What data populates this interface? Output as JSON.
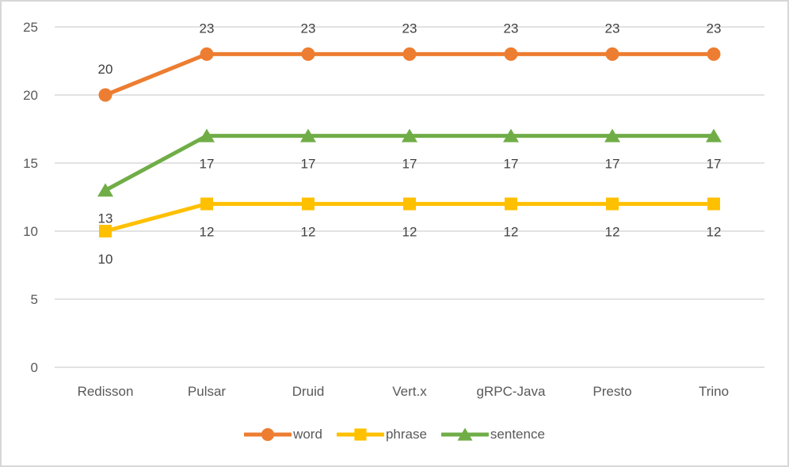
{
  "canvas": {
    "background": "#FFFFFF",
    "border_color": "#D7D7D7"
  },
  "chart_data": {
    "type": "line",
    "categories": [
      "Redisson",
      "Pulsar",
      "Druid",
      "Vert.x",
      "gRPC-Java",
      "Presto",
      "Trino"
    ],
    "series": [
      {
        "name": "word",
        "values": [
          20,
          23,
          23,
          23,
          23,
          23,
          23
        ],
        "color": "#ED7D31",
        "marker": "circle",
        "label_position": "above"
      },
      {
        "name": "phrase",
        "values": [
          10,
          12,
          12,
          12,
          12,
          12,
          12
        ],
        "color": "#FFC000",
        "marker": "square",
        "label_position": "below"
      },
      {
        "name": "sentence",
        "values": [
          13,
          17,
          17,
          17,
          17,
          17,
          17
        ],
        "color": "#70AD47",
        "marker": "triangle",
        "label_position": "below"
      }
    ],
    "xlabel": "",
    "ylabel": "",
    "ylim": [
      0,
      25
    ],
    "yticks": [
      0,
      5,
      10,
      15,
      20,
      25
    ],
    "grid": true,
    "gridline_color": "#D9D9D9",
    "axis_label_color": "#595959",
    "data_label_color": "#404040",
    "data_labels": true,
    "legend_position": "bottom"
  }
}
